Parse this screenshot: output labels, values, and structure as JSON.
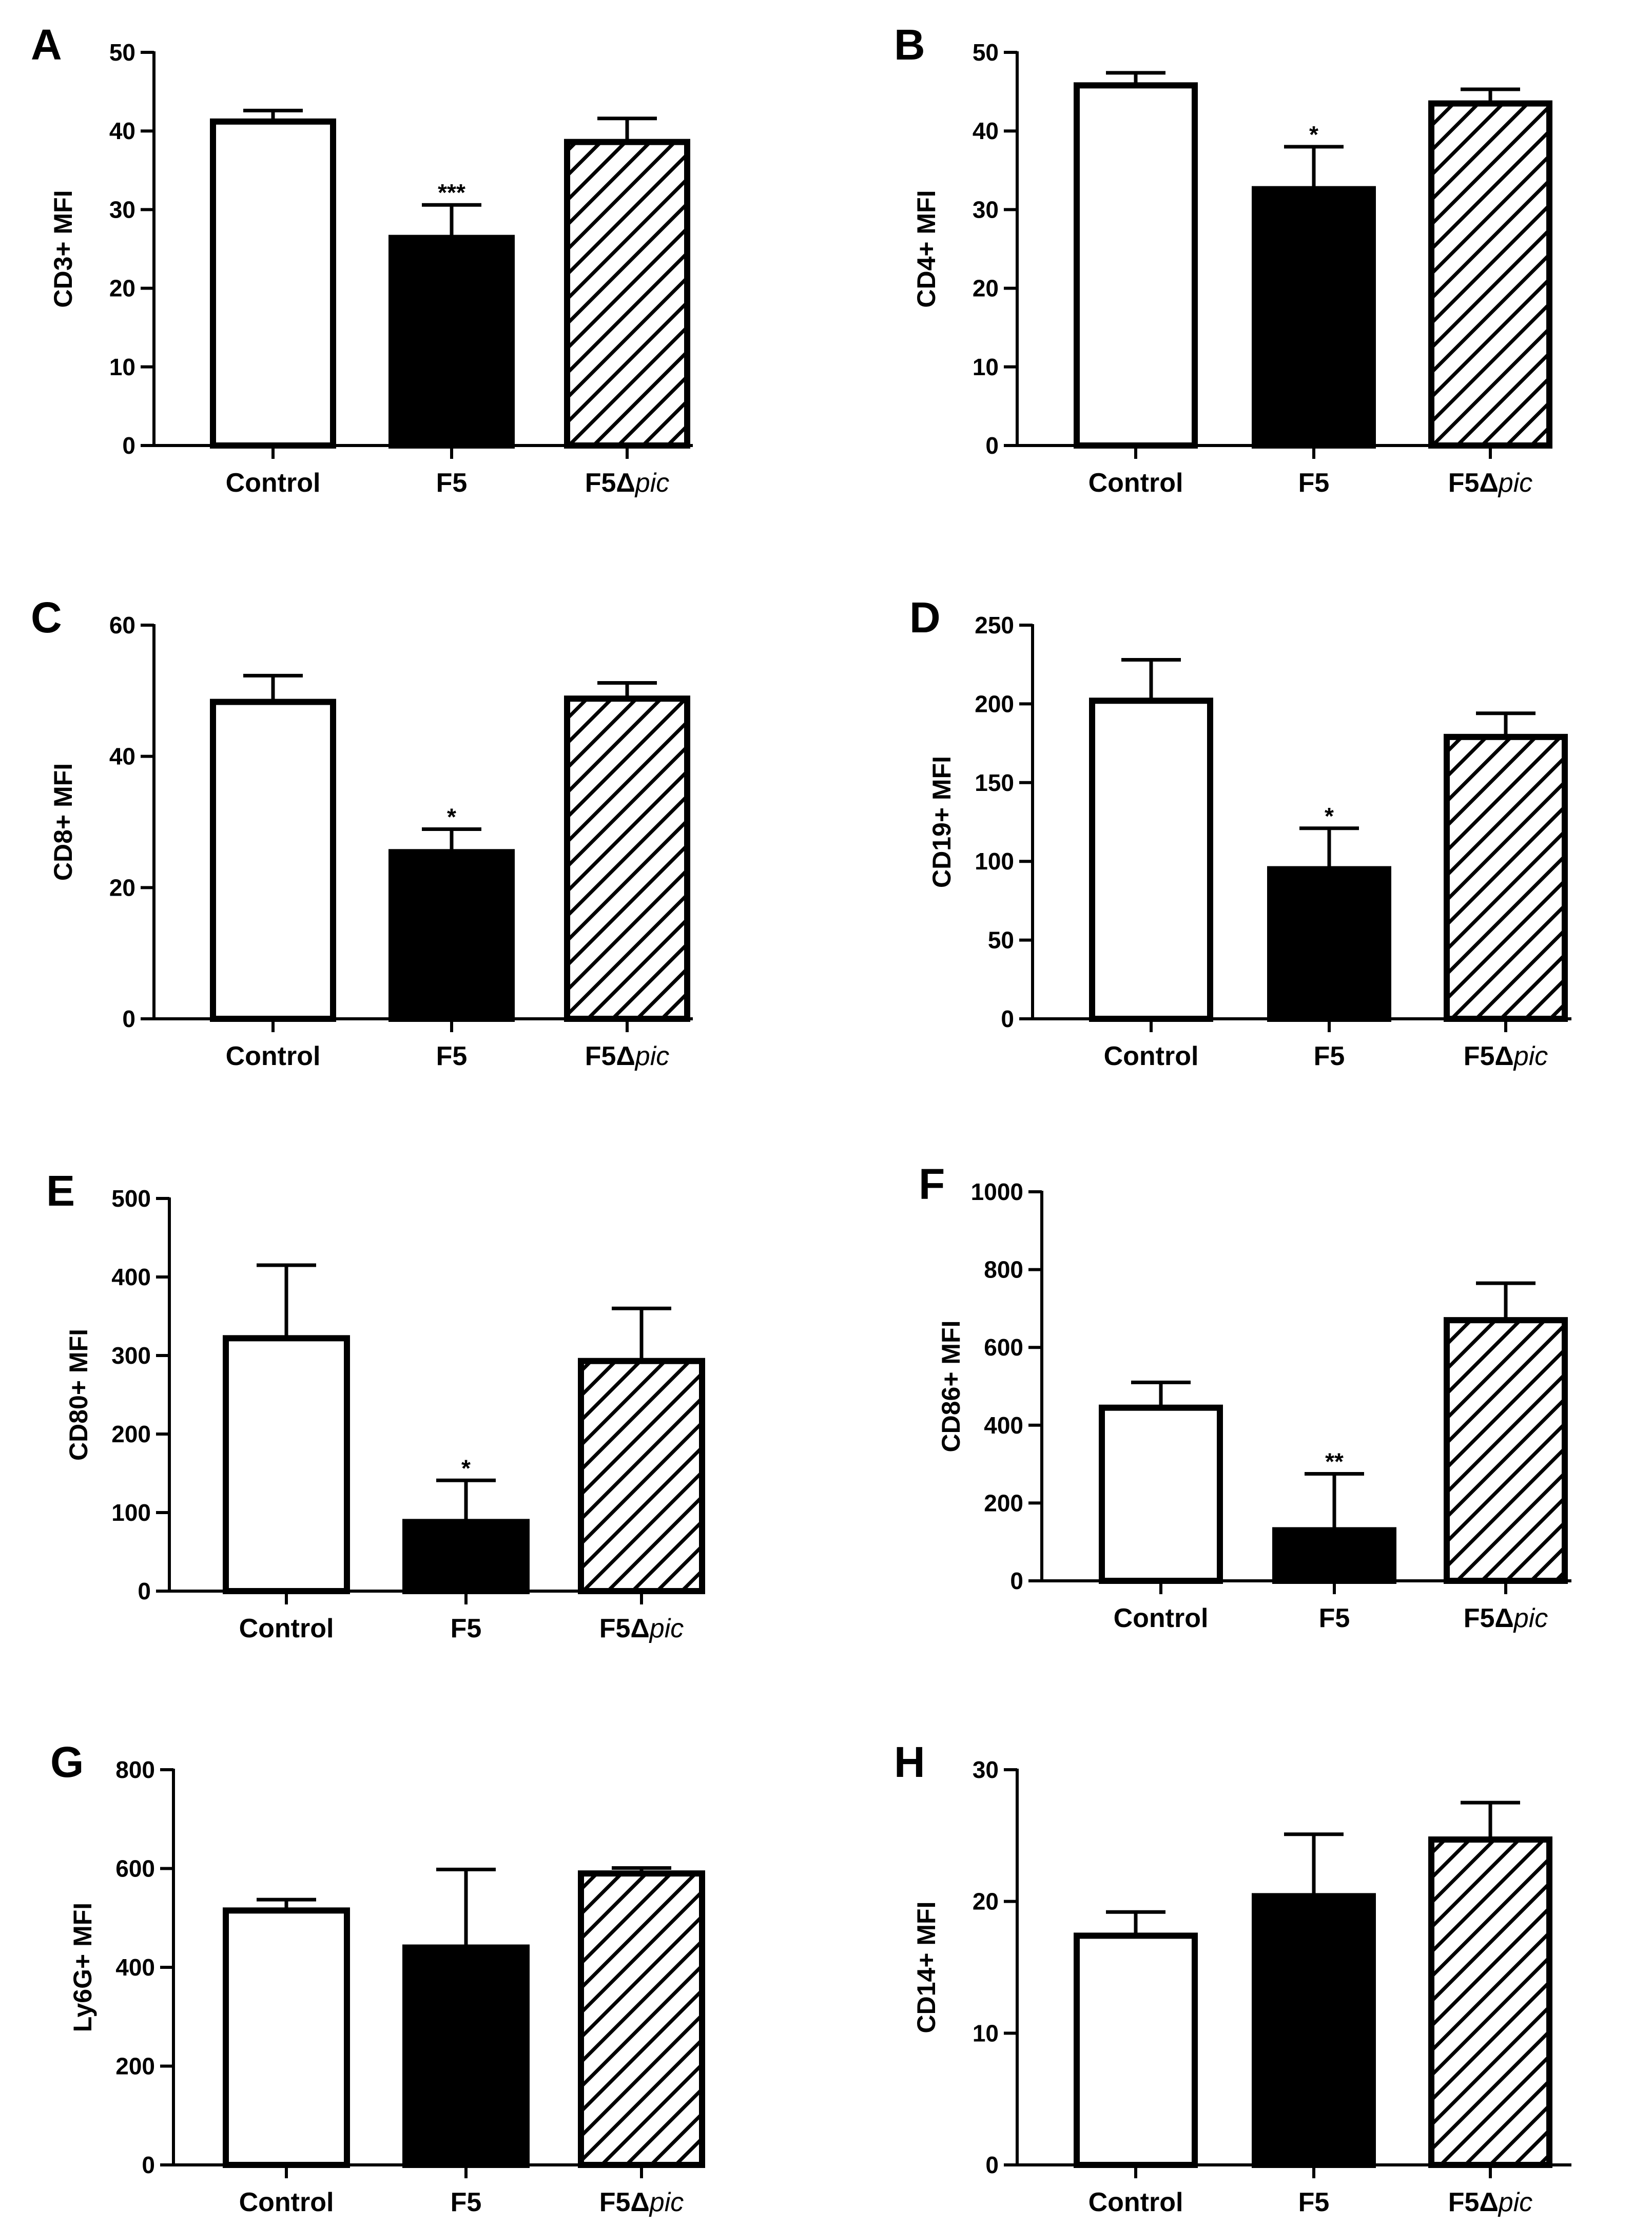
{
  "colors": {
    "control_fill": "#ffffff",
    "f5_fill": "#000000",
    "stroke": "#000000"
  },
  "chart_data": [
    {
      "type": "bar",
      "panel": "A",
      "ylabel": "CD3+ MFI",
      "categories": [
        "Control",
        "F5",
        "F5Δpic"
      ],
      "values": [
        41.2,
        26.4,
        38.6
      ],
      "errors": [
        1.4,
        4.2,
        3.0
      ],
      "significance": [
        "",
        "***",
        ""
      ],
      "ylim": [
        0,
        50
      ],
      "yticks": [
        0,
        10,
        20,
        30,
        40,
        50
      ]
    },
    {
      "type": "bar",
      "panel": "B",
      "ylabel": "CD4+ MFI",
      "categories": [
        "Control",
        "F5",
        "F5Δpic"
      ],
      "values": [
        45.8,
        32.6,
        43.5
      ],
      "errors": [
        1.6,
        5.4,
        1.8
      ],
      "significance": [
        "",
        "*",
        ""
      ],
      "ylim": [
        0,
        50
      ],
      "yticks": [
        0,
        10,
        20,
        30,
        40,
        50
      ]
    },
    {
      "type": "bar",
      "panel": "C",
      "ylabel": "CD8+ MFI",
      "categories": [
        "Control",
        "F5",
        "F5Δpic"
      ],
      "values": [
        48.3,
        25.4,
        48.8
      ],
      "errors": [
        4.0,
        3.5,
        2.4
      ],
      "significance": [
        "",
        "*",
        ""
      ],
      "ylim": [
        0,
        60
      ],
      "yticks": [
        0,
        20,
        40,
        60
      ]
    },
    {
      "type": "bar",
      "panel": "D",
      "ylabel": "CD19+ MFI",
      "categories": [
        "Control",
        "F5",
        "F5Δpic"
      ],
      "values": [
        202,
        95,
        179
      ],
      "errors": [
        26,
        26,
        15
      ],
      "significance": [
        "",
        "*",
        ""
      ],
      "ylim": [
        0,
        250
      ],
      "yticks": [
        0,
        50,
        100,
        150,
        200,
        250
      ]
    },
    {
      "type": "bar",
      "panel": "E",
      "ylabel": "CD80+ MFI",
      "categories": [
        "Control",
        "F5",
        "F5Δpic"
      ],
      "values": [
        322,
        88,
        293
      ],
      "errors": [
        93,
        53,
        67
      ],
      "significance": [
        "",
        "*",
        ""
      ],
      "ylim": [
        0,
        500
      ],
      "yticks": [
        0,
        100,
        200,
        300,
        400,
        500
      ]
    },
    {
      "type": "bar",
      "panel": "F",
      "ylabel": "CD86+ MFI",
      "categories": [
        "Control",
        "F5",
        "F5Δpic"
      ],
      "values": [
        445,
        130,
        670
      ],
      "errors": [
        65,
        145,
        95
      ],
      "significance": [
        "",
        "**",
        ""
      ],
      "ylim": [
        0,
        1000
      ],
      "yticks": [
        0,
        200,
        400,
        600,
        800,
        1000
      ]
    },
    {
      "type": "bar",
      "panel": "G",
      "ylabel": "Ly6G+ MFI",
      "categories": [
        "Control",
        "F5",
        "F5Δpic"
      ],
      "values": [
        515,
        440,
        590
      ],
      "errors": [
        22,
        158,
        11
      ],
      "significance": [
        "",
        "",
        ""
      ],
      "ylim": [
        0,
        800
      ],
      "yticks": [
        0,
        200,
        400,
        600,
        800
      ]
    },
    {
      "type": "bar",
      "panel": "H",
      "ylabel": "CD14+ MFI",
      "categories": [
        "Control",
        "F5",
        "F5Δpic"
      ],
      "values": [
        17.4,
        20.4,
        24.7
      ],
      "errors": [
        1.8,
        4.7,
        2.8
      ],
      "significance": [
        "",
        "",
        ""
      ],
      "ylim": [
        0,
        30
      ],
      "yticks": [
        0,
        10,
        20,
        30
      ]
    }
  ]
}
